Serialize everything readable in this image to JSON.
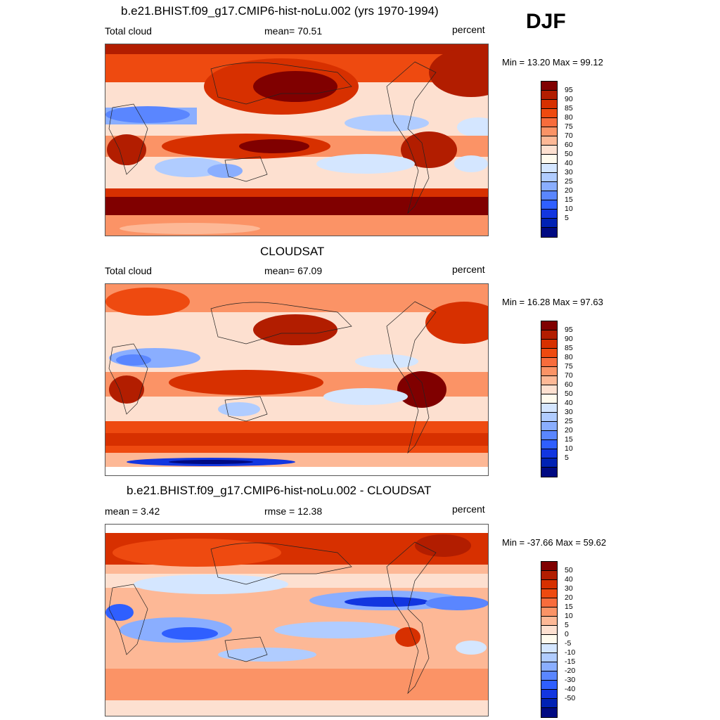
{
  "season": "DJF",
  "panels": [
    {
      "title": "b.e21.BHIST.f09_g17.CMIP6-hist-noLu.002 (yrs 1970-1994)",
      "left_label": "Total cloud",
      "center_label": "mean=  70.51",
      "right_label": "percent",
      "minmax": "Min =  13.20 Max =  99.12",
      "colorbar_labels": [
        "95",
        "90",
        "85",
        "80",
        "75",
        "70",
        "60",
        "50",
        "40",
        "30",
        "25",
        "20",
        "15",
        "10",
        "5"
      ],
      "colors": [
        "#800000",
        "#b21d00",
        "#d73000",
        "#ee4a10",
        "#f86c3c",
        "#fb9366",
        "#fdb896",
        "#fde0d0",
        "#fffbee",
        "#d4e6ff",
        "#b0ccff",
        "#8aaeff",
        "#5a86ff",
        "#2f5fff",
        "#1236e0",
        "#0022b4",
        "#000a82"
      ]
    },
    {
      "title": "CLOUDSAT",
      "left_label": "Total cloud",
      "center_label": "mean=  67.09",
      "right_label": "percent",
      "minmax": "Min =  16.28 Max =  97.63",
      "colorbar_labels": [
        "95",
        "90",
        "85",
        "80",
        "75",
        "70",
        "60",
        "50",
        "40",
        "30",
        "25",
        "20",
        "15",
        "10",
        "5"
      ],
      "colors": [
        "#800000",
        "#b21d00",
        "#d73000",
        "#ee4a10",
        "#f86c3c",
        "#fb9366",
        "#fdb896",
        "#fde0d0",
        "#fffbee",
        "#d4e6ff",
        "#b0ccff",
        "#8aaeff",
        "#5a86ff",
        "#2f5fff",
        "#1236e0",
        "#0022b4",
        "#000a82"
      ]
    },
    {
      "title": "b.e21.BHIST.f09_g17.CMIP6-hist-noLu.002 - CLOUDSAT",
      "left_label": "mean =   3.42",
      "center_label": "rmse =  12.38",
      "right_label": "percent",
      "minmax": "Min = -37.66 Max =  59.62",
      "colorbar_labels": [
        "50",
        "40",
        "30",
        "20",
        "15",
        "10",
        "5",
        "0",
        "-5",
        "-10",
        "-15",
        "-20",
        "-30",
        "-40",
        "-50"
      ],
      "colors": [
        "#800000",
        "#b21d00",
        "#d73000",
        "#ee4a10",
        "#f86c3c",
        "#fb9366",
        "#fdb896",
        "#fde0d0",
        "#fffbee",
        "#d4e6ff",
        "#b0ccff",
        "#8aaeff",
        "#5a86ff",
        "#2f5fff",
        "#1236e0",
        "#0022b4",
        "#000a82"
      ]
    }
  ]
}
